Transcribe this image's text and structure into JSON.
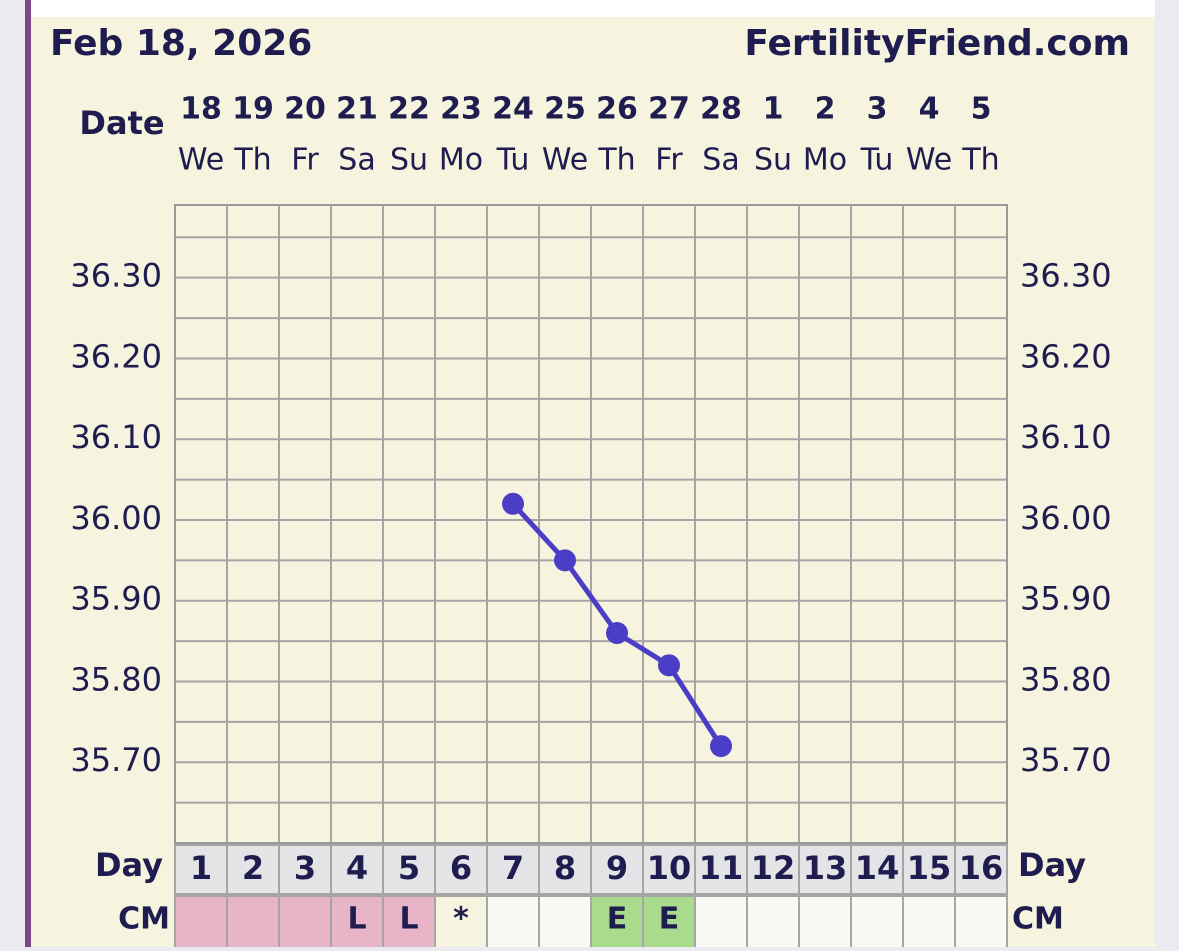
{
  "chart_data": {
    "type": "line",
    "title": "Feb 18, 2026",
    "site": "FertilityFriend.com",
    "date_label": "Date",
    "day_label": "Day",
    "cm_label": "CM",
    "categories": [
      "18",
      "19",
      "20",
      "21",
      "22",
      "23",
      "24",
      "25",
      "26",
      "27",
      "28",
      "1",
      "2",
      "3",
      "4",
      "5"
    ],
    "weekdays": [
      "We",
      "Th",
      "Fr",
      "Sa",
      "Su",
      "Mo",
      "Tu",
      "We",
      "Th",
      "Fr",
      "Sa",
      "Su",
      "Mo",
      "Tu",
      "We",
      "Th"
    ],
    "cycle_days": [
      1,
      2,
      3,
      4,
      5,
      6,
      7,
      8,
      9,
      10,
      11,
      12,
      13,
      14,
      15,
      16
    ],
    "cm": [
      null,
      null,
      null,
      "L",
      "L",
      "*",
      null,
      null,
      "E",
      "E",
      null,
      null,
      null,
      null,
      null,
      null
    ],
    "cm_colors": [
      "#e8b5c8",
      "#e8b5c8",
      "#e8b5c8",
      "#e8b5c8",
      "#e8b5c8",
      "#f6f4de",
      "#fafaf5",
      "#fafaf5",
      "#a8dc8c",
      "#a8dc8c",
      "#fafaf5",
      "#fafaf5",
      "#fafaf5",
      "#fafaf5",
      "#fafaf5",
      "#fafaf5"
    ],
    "series": [
      {
        "color": "#4b3ec6",
        "values": [
          null,
          null,
          null,
          null,
          null,
          null,
          36.02,
          35.95,
          35.86,
          35.82,
          35.72,
          null,
          null,
          null,
          null,
          null
        ]
      }
    ],
    "ylim": [
      35.6,
      36.39
    ],
    "yticks": [
      {
        "value": 35.7,
        "label": "35.70"
      },
      {
        "value": 35.8,
        "label": "35.80"
      },
      {
        "value": 35.9,
        "label": "35.90"
      },
      {
        "value": 36.0,
        "label": "36.00"
      },
      {
        "value": 36.1,
        "label": "36.10"
      },
      {
        "value": 36.2,
        "label": "36.20"
      },
      {
        "value": 36.3,
        "label": "36.30"
      }
    ],
    "minor_yticks": [
      35.65,
      35.75,
      35.85,
      35.95,
      36.05,
      36.15,
      36.25,
      36.35
    ],
    "grid": true
  }
}
